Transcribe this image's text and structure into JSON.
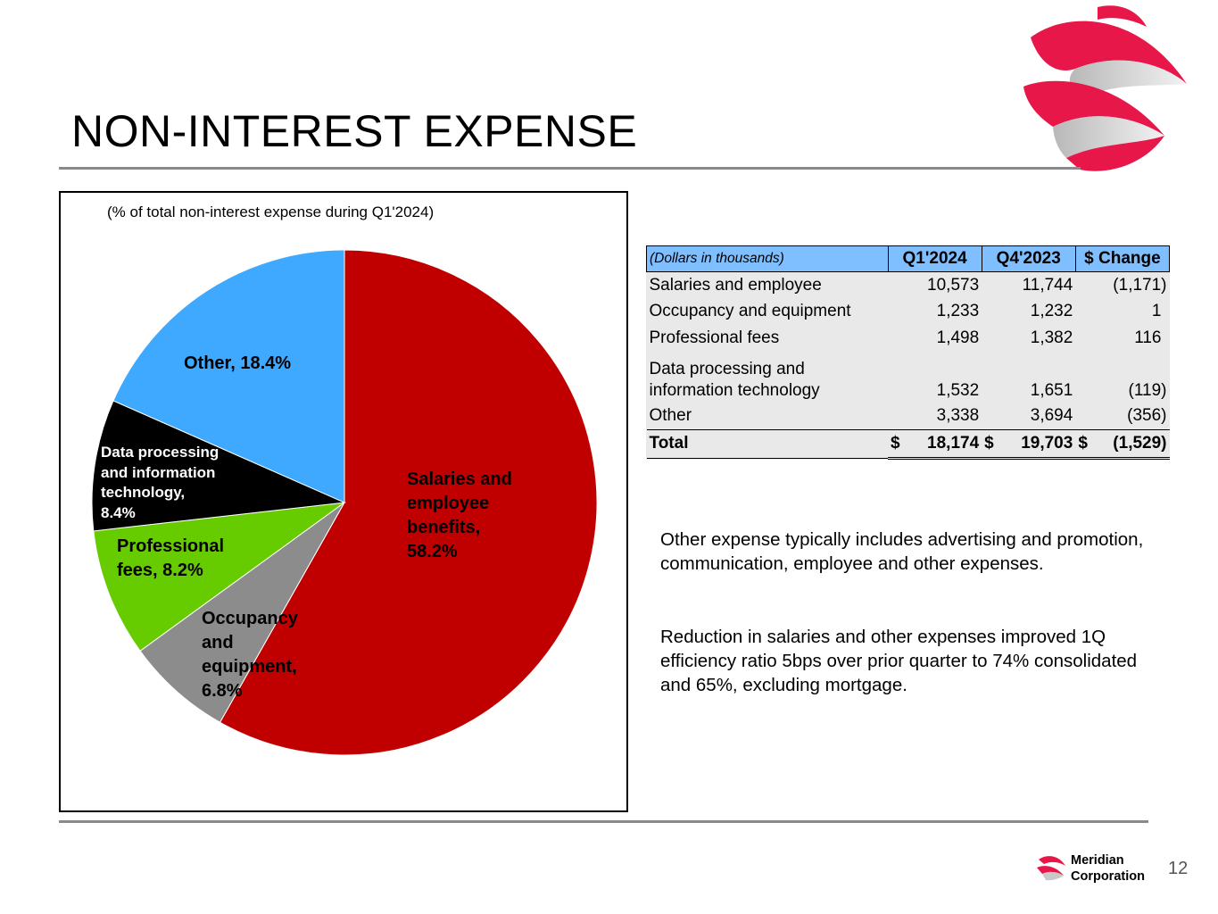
{
  "slide": {
    "title": "NON-INTEREST EXPENSE",
    "page_number": "12",
    "company_line1": "Meridian",
    "company_line2": "Corporation"
  },
  "chart_data": {
    "type": "pie",
    "subtitle": "(% of total non-interest expense during Q1'2024)",
    "slices": [
      {
        "label": "Salaries and employee benefits",
        "value": 58.2,
        "color": "#c00000",
        "label_color": "#000000",
        "lines": [
          "Salaries and",
          "employee",
          "benefits,",
          "58.2%"
        ]
      },
      {
        "label": "Occupancy and equipment",
        "value": 6.8,
        "color": "#8c8c8c",
        "label_color": "#000000",
        "lines": [
          "Occupancy",
          "and",
          "equipment,",
          "6.8%"
        ]
      },
      {
        "label": "Professional fees",
        "value": 8.2,
        "color": "#66cc00",
        "label_color": "#000000",
        "lines": [
          "Professional",
          "fees, 8.2%"
        ]
      },
      {
        "label": "Data processing and information technology",
        "value": 8.4,
        "color": "#000000",
        "label_color": "#ffffff",
        "lines": [
          "Data processing",
          "and information",
          "technology,",
          "8.4%"
        ]
      },
      {
        "label": "Other",
        "value": 18.4,
        "color": "#3fa9ff",
        "label_color": "#000000",
        "lines": [
          "Other, 18.4%"
        ]
      }
    ]
  },
  "table": {
    "unit_label": "(Dollars in thousands)",
    "col_q1": "Q1'2024",
    "col_q4": "Q4'2023",
    "col_change": "$ Change",
    "rows": [
      {
        "label": "Salaries and employee",
        "q1": "10,573",
        "q4": "11,744",
        "change": "(1,171)"
      },
      {
        "label": "Occupancy and equipment",
        "q1": "1,233",
        "q4": "1,232",
        "change": "1"
      },
      {
        "label": "Professional fees",
        "q1": "1,498",
        "q4": "1,382",
        "change": "116"
      },
      {
        "label_line1": "Data processing and",
        "label_line2": "information technology",
        "q1": "1,532",
        "q4": "1,651",
        "change": "(119)"
      },
      {
        "label": "Other",
        "q1": "3,338",
        "q4": "3,694",
        "change": "(356)"
      }
    ],
    "total": {
      "label": "Total",
      "currency": "$",
      "q1": "18,174",
      "q4": "19,703",
      "change": "(1,529)"
    }
  },
  "notes": {
    "note1": "Other expense typically includes advertising and promotion, communication, employee and other expenses.",
    "note2": "Reduction in salaries and other expenses improved 1Q efficiency ratio 5bps over prior quarter to 74% consolidated and 65%, excluding mortgage."
  },
  "colors": {
    "rule": "#8a8a8a",
    "header_fill": "#7fbfff",
    "table_fill": "#e9e9e9",
    "brand_red": "#e8174a"
  }
}
